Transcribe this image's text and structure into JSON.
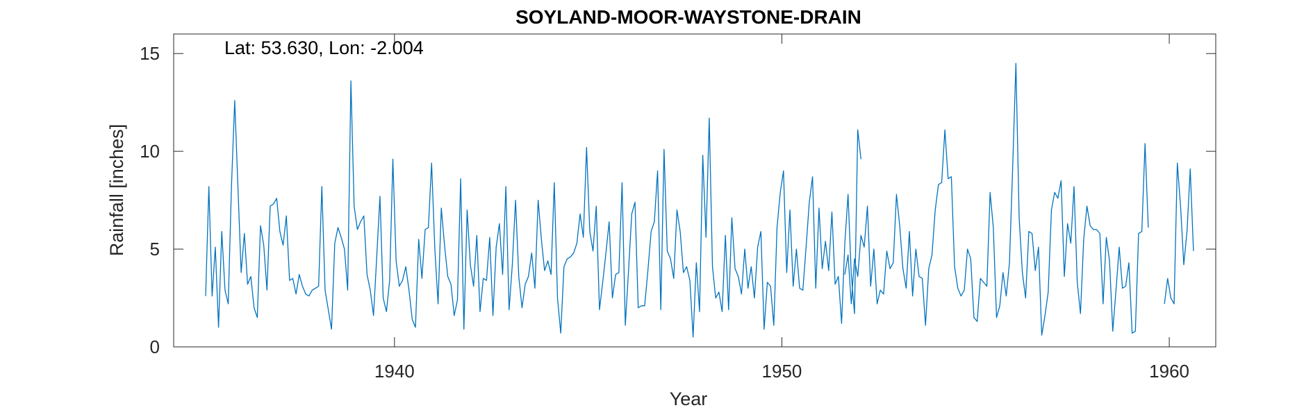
{
  "chart_data": {
    "type": "line",
    "title": "SOYLAND-MOOR-WAYSTONE-DRAIN",
    "xlabel": "Year",
    "ylabel": "Rainfall [inches]",
    "annotation": "Lat: 53.630, Lon: -2.004",
    "xlim": [
      1934.3,
      1961.2
    ],
    "ylim": [
      0,
      16
    ],
    "xticks": [
      1940,
      1950,
      1960
    ],
    "yticks": [
      0,
      5,
      10,
      15
    ],
    "grid": false,
    "line_color": "#0072BD",
    "series": [
      {
        "name": "",
        "segments": [
          {
            "x_start": 1935.125,
            "step": 0.08333333,
            "values": [
              2.6,
              8.2,
              2.6,
              5.1,
              1.0,
              5.9,
              2.9,
              2.2,
              8.2,
              12.6,
              8.2,
              3.8,
              5.8,
              3.2,
              3.6,
              2.0,
              1.5,
              6.2,
              5.2,
              2.9,
              7.2,
              7.3,
              7.6,
              5.9,
              5.2,
              6.7,
              3.4,
              3.5,
              2.7,
              3.7,
              3.1,
              2.7,
              2.6,
              2.9,
              3.0,
              3.1,
              8.2,
              2.9,
              1.9,
              0.9,
              5.3,
              6.1,
              5.6,
              5.0,
              2.9,
              13.6,
              7.2,
              6.0,
              6.4,
              6.7,
              3.7,
              2.9,
              1.6,
              4.6,
              7.7,
              2.5,
              1.8,
              3.4,
              9.6,
              4.4,
              3.1,
              3.4,
              4.1,
              2.9,
              1.4,
              1.0,
              5.5,
              3.5,
              6.0,
              6.1,
              9.4,
              5.0,
              2.2,
              7.1,
              5.2,
              3.6,
              3.2,
              1.6,
              2.4,
              8.6,
              0.9,
              7.0,
              4.2,
              3.1,
              5.7,
              1.8,
              3.5,
              3.4,
              5.6,
              1.6,
              5.1,
              6.3,
              3.7,
              8.2,
              1.9,
              4.2,
              7.5,
              3.6,
              2.0,
              3.2,
              3.6,
              4.8,
              3.0,
              7.5,
              5.5,
              3.9,
              4.4,
              3.7,
              8.4,
              2.5,
              0.7,
              4.1,
              4.5,
              4.6,
              4.8,
              5.3,
              6.8,
              5.6,
              10.2,
              5.9,
              4.9,
              7.2,
              1.9,
              3.3,
              4.8,
              6.4,
              2.5,
              3.7,
              3.8,
              8.4,
              1.1,
              3.9,
              6.8,
              7.4,
              2.0,
              2.1,
              2.1,
              3.9,
              5.9,
              6.4,
              9.0,
              1.9,
              10.1,
              4.9,
              4.5,
              3.5,
              7.0,
              5.9,
              3.8,
              4.1,
              3.4,
              0.5,
              4.3,
              1.8,
              9.8,
              5.6,
              11.7,
              4.1,
              2.5,
              2.8,
              1.8,
              5.7,
              1.9,
              6.6,
              4.0,
              3.6,
              2.7,
              5.0,
              3.0,
              4.1,
              2.5,
              5.1,
              5.9,
              0.9,
              3.3,
              3.1,
              1.1,
              6.1,
              7.9,
              9.0,
              3.8,
              7.0,
              3.1,
              5.0,
              3.0,
              2.9,
              5.1,
              7.4,
              8.7,
              3.0,
              7.1,
              4.0,
              5.4,
              3.9,
              6.9,
              3.2,
              3.6,
              1.2,
              5.3,
              7.8,
              3.7,
              1.7,
              11.1,
              9.6
            ]
          },
          {
            "x_start": 1951.625,
            "step": 0.08333333,
            "values": [
              3.7,
              4.7,
              2.2,
              4.5,
              3.6,
              5.7,
              5.1,
              7.2,
              3.1,
              5.0,
              2.2,
              2.9,
              2.7,
              4.9,
              4.0,
              4.3,
              7.8,
              6.2,
              4.0,
              3.0,
              5.9,
              2.6,
              5.0,
              3.6,
              3.5,
              1.1,
              4.0,
              4.7,
              7.0,
              8.3,
              8.4,
              11.1,
              8.6,
              8.7,
              4.1,
              3.0,
              2.6,
              2.9,
              5.0,
              4.5,
              1.5,
              1.3,
              3.5,
              3.3,
              3.1,
              7.9,
              6.1,
              1.5,
              2.1,
              3.8,
              2.6,
              4.3,
              9.2,
              14.5,
              6.6,
              3.8,
              2.5,
              5.9,
              5.8,
              3.9,
              5.1,
              0.6,
              1.6,
              2.8,
              7.0,
              7.9,
              7.6,
              8.5,
              3.6,
              6.3,
              5.3,
              8.2,
              3.3,
              1.7,
              5.5,
              7.2,
              6.2,
              6.0,
              6.0,
              5.8,
              2.2,
              5.6,
              4.4,
              0.8,
              2.9,
              5.1,
              3.0,
              3.1,
              4.3,
              0.7,
              0.8,
              5.8,
              5.9,
              10.4,
              6.1
            ]
          },
          {
            "x_start": 1959.875,
            "step": 0.08333333,
            "values": [
              2.2,
              3.5,
              2.5,
              2.2,
              9.4,
              7.2,
              4.2,
              5.9,
              9.1,
              4.9
            ]
          }
        ]
      }
    ]
  }
}
